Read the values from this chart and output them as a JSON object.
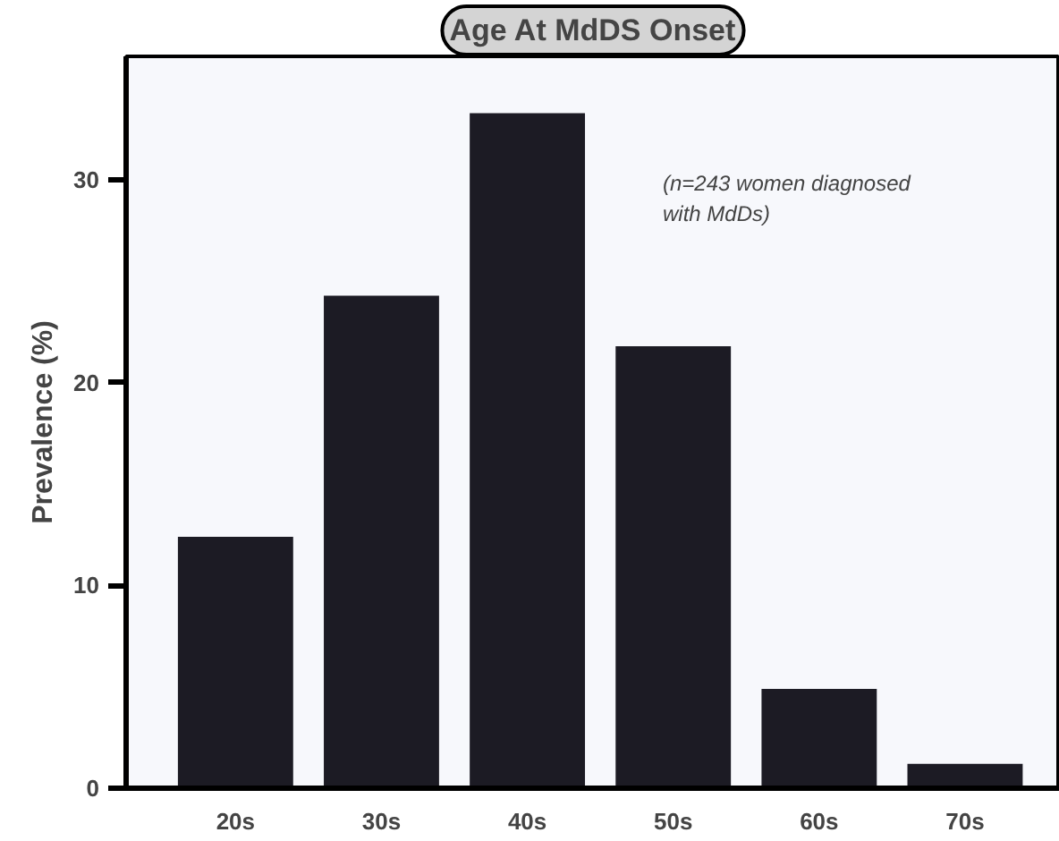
{
  "chart_data": {
    "type": "bar",
    "title": "Age At MdDS Onset",
    "ylabel": "Prevalence (%)",
    "categories": [
      "20s",
      "30s",
      "40s",
      "50s",
      "60s",
      "70s"
    ],
    "values": [
      12.4,
      24.3,
      33.3,
      21.8,
      4.9,
      1.2
    ],
    "color": "#1c1b24",
    "ylim": [
      0,
      36.1
    ],
    "yticks": [
      0,
      10,
      20,
      30
    ],
    "grid": false,
    "annotations": [
      "(n=243 women diagnosed\nwith MdDs)"
    ]
  }
}
